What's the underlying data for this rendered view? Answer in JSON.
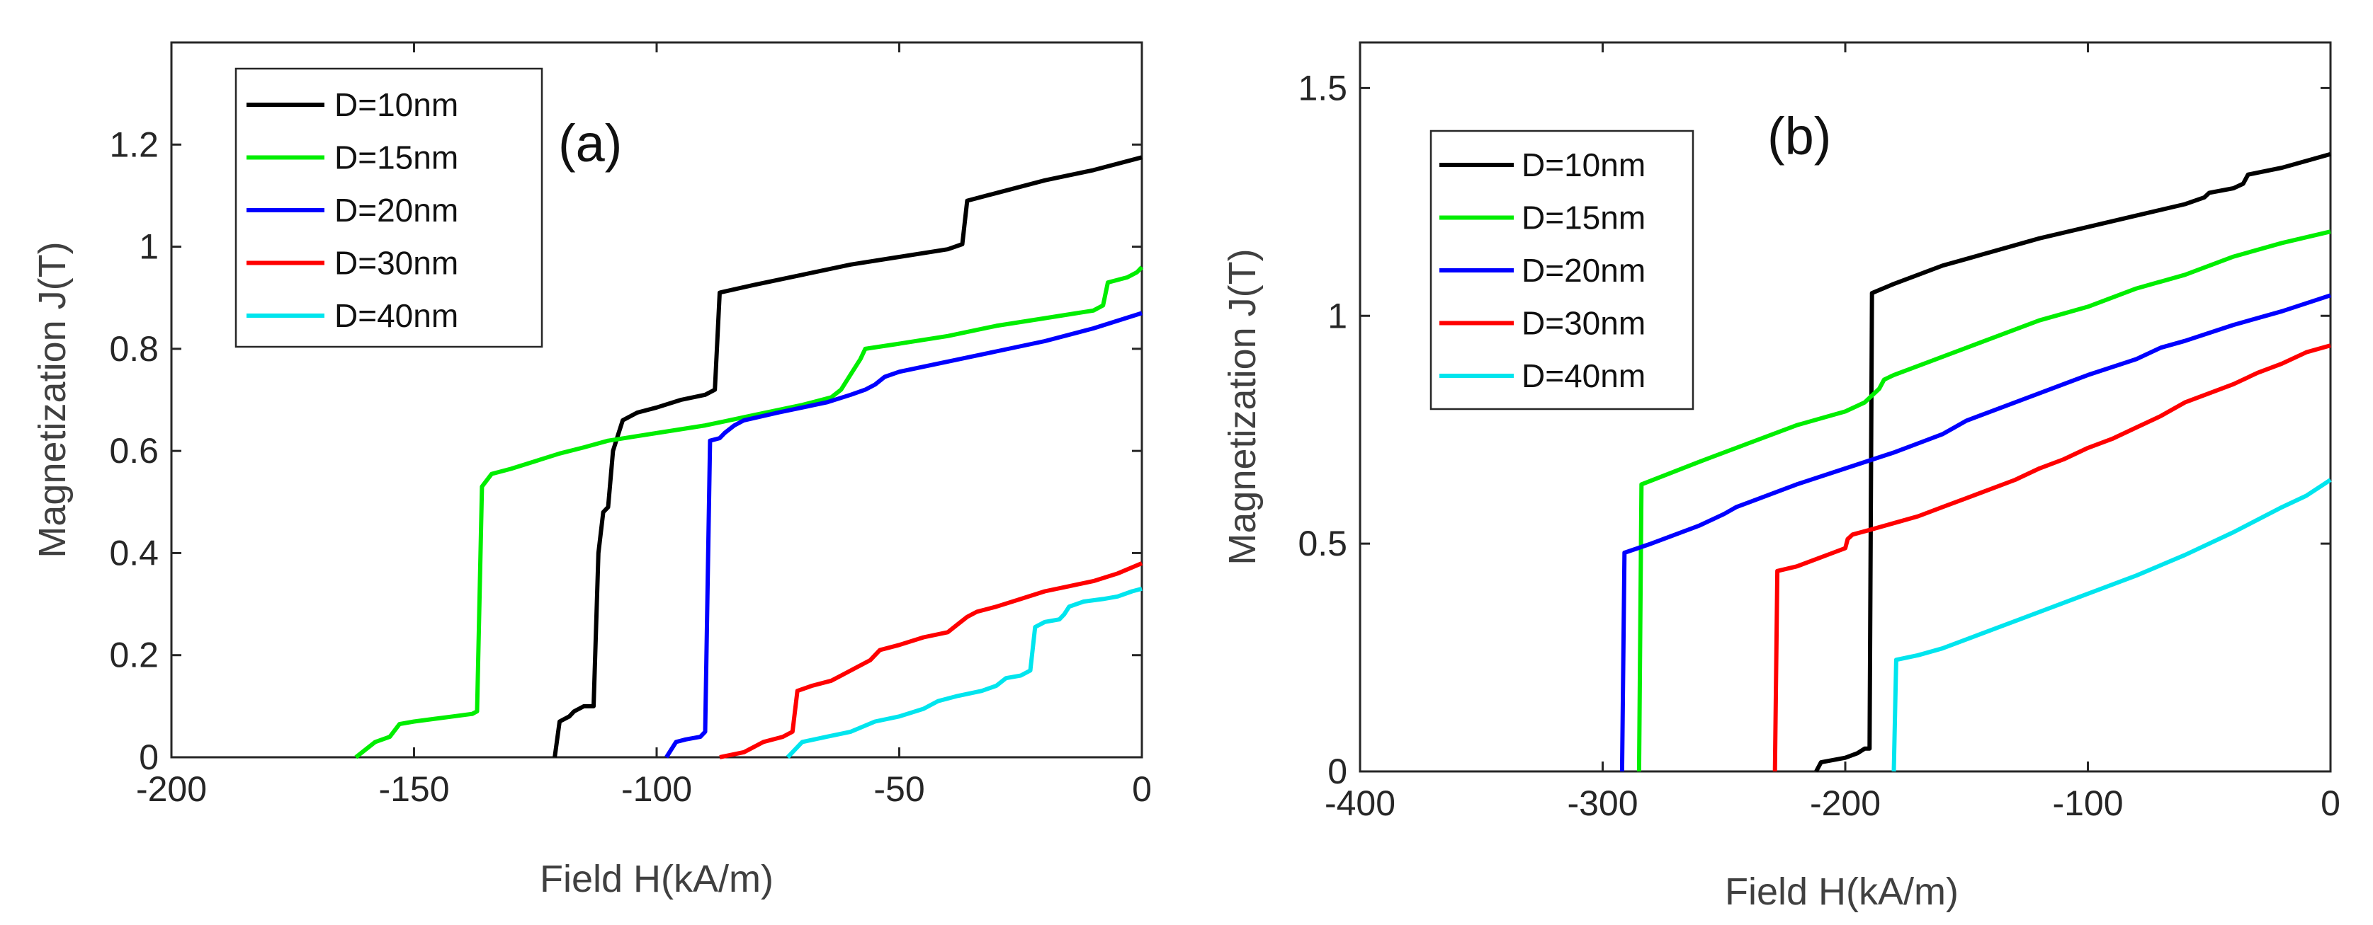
{
  "chart_data": [
    {
      "type": "line",
      "panel_label": "(a)",
      "xlabel": "Field H(kA/m)",
      "ylabel": "Magnetization J(T)",
      "xlim": [
        -200,
        0
      ],
      "ylim": [
        0,
        1.4
      ],
      "xticks": [
        -200,
        -150,
        -100,
        -50,
        0
      ],
      "xtick_labels": [
        "-200",
        "-150",
        "-100",
        "-50",
        "0"
      ],
      "yticks": [
        0,
        0.2,
        0.4,
        0.6,
        0.8,
        1,
        1.2
      ],
      "ytick_labels": [
        "0",
        "0.2",
        "0.4",
        "0.6",
        "0.8",
        "1",
        "1.2"
      ],
      "legend_position": "top-left",
      "series": [
        {
          "name": "D=10nm",
          "color": "#000000",
          "points": [
            [
              -121,
              0
            ],
            [
              -120,
              0.07
            ],
            [
              -118,
              0.08
            ],
            [
              -117,
              0.09
            ],
            [
              -115,
              0.1
            ],
            [
              -113,
              0.1
            ],
            [
              -112,
              0.4
            ],
            [
              -111,
              0.48
            ],
            [
              -110,
              0.49
            ],
            [
              -109,
              0.6
            ],
            [
              -108,
              0.63
            ],
            [
              -107,
              0.66
            ],
            [
              -104,
              0.675
            ],
            [
              -100,
              0.685
            ],
            [
              -95,
              0.7
            ],
            [
              -90,
              0.71
            ],
            [
              -88,
              0.72
            ],
            [
              -87,
              0.91
            ],
            [
              -80,
              0.925
            ],
            [
              -70,
              0.945
            ],
            [
              -60,
              0.965
            ],
            [
              -50,
              0.98
            ],
            [
              -40,
              0.995
            ],
            [
              -37,
              1.005
            ],
            [
              -36,
              1.09
            ],
            [
              -30,
              1.105
            ],
            [
              -20,
              1.13
            ],
            [
              -10,
              1.15
            ],
            [
              0,
              1.175
            ]
          ]
        },
        {
          "name": "D=15nm",
          "color": "#00ee00",
          "points": [
            [
              -162,
              0
            ],
            [
              -158,
              0.03
            ],
            [
              -155,
              0.04
            ],
            [
              -153,
              0.065
            ],
            [
              -150,
              0.07
            ],
            [
              -146,
              0.075
            ],
            [
              -142,
              0.08
            ],
            [
              -138,
              0.085
            ],
            [
              -137,
              0.09
            ],
            [
              -136,
              0.53
            ],
            [
              -134,
              0.555
            ],
            [
              -130,
              0.565
            ],
            [
              -125,
              0.58
            ],
            [
              -120,
              0.595
            ],
            [
              -115,
              0.607
            ],
            [
              -110,
              0.62
            ],
            [
              -100,
              0.635
            ],
            [
              -90,
              0.65
            ],
            [
              -80,
              0.67
            ],
            [
              -70,
              0.69
            ],
            [
              -64,
              0.705
            ],
            [
              -62,
              0.72
            ],
            [
              -60,
              0.75
            ],
            [
              -58,
              0.78
            ],
            [
              -57,
              0.8
            ],
            [
              -50,
              0.81
            ],
            [
              -40,
              0.825
            ],
            [
              -35,
              0.835
            ],
            [
              -30,
              0.845
            ],
            [
              -20,
              0.86
            ],
            [
              -10,
              0.875
            ],
            [
              -8,
              0.885
            ],
            [
              -7,
              0.93
            ],
            [
              -3,
              0.94
            ],
            [
              -1,
              0.95
            ],
            [
              0,
              0.96
            ]
          ]
        },
        {
          "name": "D=20nm",
          "color": "#0000ff",
          "points": [
            [
              -98,
              0
            ],
            [
              -96,
              0.03
            ],
            [
              -94,
              0.035
            ],
            [
              -91,
              0.04
            ],
            [
              -90,
              0.05
            ],
            [
              -89,
              0.62
            ],
            [
              -87,
              0.625
            ],
            [
              -86,
              0.635
            ],
            [
              -84,
              0.65
            ],
            [
              -82,
              0.66
            ],
            [
              -75,
              0.675
            ],
            [
              -70,
              0.685
            ],
            [
              -65,
              0.695
            ],
            [
              -60,
              0.71
            ],
            [
              -57,
              0.72
            ],
            [
              -55,
              0.73
            ],
            [
              -53,
              0.745
            ],
            [
              -50,
              0.755
            ],
            [
              -40,
              0.775
            ],
            [
              -30,
              0.795
            ],
            [
              -20,
              0.815
            ],
            [
              -10,
              0.84
            ],
            [
              0,
              0.87
            ]
          ]
        },
        {
          "name": "D=30nm",
          "color": "#ff0000",
          "points": [
            [
              -87,
              0
            ],
            [
              -82,
              0.01
            ],
            [
              -78,
              0.03
            ],
            [
              -74,
              0.04
            ],
            [
              -72,
              0.05
            ],
            [
              -71,
              0.13
            ],
            [
              -68,
              0.14
            ],
            [
              -64,
              0.15
            ],
            [
              -62,
              0.16
            ],
            [
              -60,
              0.17
            ],
            [
              -58,
              0.18
            ],
            [
              -56,
              0.19
            ],
            [
              -54,
              0.21
            ],
            [
              -50,
              0.22
            ],
            [
              -45,
              0.235
            ],
            [
              -40,
              0.245
            ],
            [
              -38,
              0.26
            ],
            [
              -36,
              0.275
            ],
            [
              -34,
              0.285
            ],
            [
              -30,
              0.295
            ],
            [
              -25,
              0.31
            ],
            [
              -20,
              0.325
            ],
            [
              -15,
              0.335
            ],
            [
              -10,
              0.345
            ],
            [
              -5,
              0.36
            ],
            [
              0,
              0.38
            ]
          ]
        },
        {
          "name": "D=40nm",
          "color": "#00e5ee",
          "points": [
            [
              -73,
              0
            ],
            [
              -70,
              0.03
            ],
            [
              -65,
              0.04
            ],
            [
              -60,
              0.05
            ],
            [
              -55,
              0.07
            ],
            [
              -50,
              0.08
            ],
            [
              -45,
              0.095
            ],
            [
              -42,
              0.11
            ],
            [
              -38,
              0.12
            ],
            [
              -33,
              0.13
            ],
            [
              -30,
              0.14
            ],
            [
              -28,
              0.155
            ],
            [
              -25,
              0.16
            ],
            [
              -23,
              0.17
            ],
            [
              -22,
              0.255
            ],
            [
              -20,
              0.265
            ],
            [
              -17,
              0.27
            ],
            [
              -16,
              0.28
            ],
            [
              -15,
              0.295
            ],
            [
              -12,
              0.305
            ],
            [
              -8,
              0.31
            ],
            [
              -5,
              0.315
            ],
            [
              -2,
              0.325
            ],
            [
              0,
              0.33
            ]
          ]
        }
      ]
    },
    {
      "type": "line",
      "panel_label": "(b)",
      "xlabel": "Field H(kA/m)",
      "ylabel": "Magnetization J(T)",
      "xlim": [
        -400,
        0
      ],
      "ylim": [
        0,
        1.6
      ],
      "xticks": [
        -400,
        -300,
        -200,
        -100,
        0
      ],
      "xtick_labels": [
        "-400",
        "-300",
        "-200",
        "-100",
        "0"
      ],
      "yticks": [
        0,
        0.5,
        1,
        1.5
      ],
      "ytick_labels": [
        "0",
        "0.5",
        "1",
        "1.5"
      ],
      "legend_position": "top-left",
      "series": [
        {
          "name": "D=10nm",
          "color": "#000000",
          "points": [
            [
              -212,
              0
            ],
            [
              -210,
              0.02
            ],
            [
              -200,
              0.03
            ],
            [
              -195,
              0.04
            ],
            [
              -192,
              0.05
            ],
            [
              -190,
              0.05
            ],
            [
              -189,
              1.05
            ],
            [
              -180,
              1.07
            ],
            [
              -170,
              1.09
            ],
            [
              -160,
              1.11
            ],
            [
              -150,
              1.125
            ],
            [
              -140,
              1.14
            ],
            [
              -120,
              1.17
            ],
            [
              -100,
              1.195
            ],
            [
              -80,
              1.22
            ],
            [
              -60,
              1.245
            ],
            [
              -52,
              1.26
            ],
            [
              -50,
              1.27
            ],
            [
              -40,
              1.28
            ],
            [
              -36,
              1.29
            ],
            [
              -34,
              1.31
            ],
            [
              -20,
              1.325
            ],
            [
              -10,
              1.34
            ],
            [
              0,
              1.355
            ]
          ]
        },
        {
          "name": "D=15nm",
          "color": "#00ee00",
          "points": [
            [
              -285,
              0
            ],
            [
              -284,
              0.63
            ],
            [
              -260,
              0.68
            ],
            [
              -240,
              0.72
            ],
            [
              -220,
              0.76
            ],
            [
              -200,
              0.79
            ],
            [
              -192,
              0.81
            ],
            [
              -190,
              0.82
            ],
            [
              -186,
              0.84
            ],
            [
              -184,
              0.86
            ],
            [
              -180,
              0.87
            ],
            [
              -170,
              0.89
            ],
            [
              -160,
              0.91
            ],
            [
              -150,
              0.93
            ],
            [
              -140,
              0.95
            ],
            [
              -120,
              0.99
            ],
            [
              -100,
              1.02
            ],
            [
              -80,
              1.06
            ],
            [
              -60,
              1.09
            ],
            [
              -50,
              1.11
            ],
            [
              -40,
              1.13
            ],
            [
              -20,
              1.16
            ],
            [
              0,
              1.185
            ]
          ]
        },
        {
          "name": "D=20nm",
          "color": "#0000ff",
          "points": [
            [
              -292,
              0
            ],
            [
              -291,
              0.48
            ],
            [
              -280,
              0.5
            ],
            [
              -260,
              0.54
            ],
            [
              -250,
              0.565
            ],
            [
              -245,
              0.58
            ],
            [
              -240,
              0.59
            ],
            [
              -220,
              0.63
            ],
            [
              -200,
              0.665
            ],
            [
              -180,
              0.7
            ],
            [
              -170,
              0.72
            ],
            [
              -160,
              0.74
            ],
            [
              -155,
              0.755
            ],
            [
              -150,
              0.77
            ],
            [
              -140,
              0.79
            ],
            [
              -120,
              0.83
            ],
            [
              -100,
              0.87
            ],
            [
              -80,
              0.905
            ],
            [
              -70,
              0.93
            ],
            [
              -60,
              0.945
            ],
            [
              -40,
              0.98
            ],
            [
              -20,
              1.01
            ],
            [
              0,
              1.045
            ]
          ]
        },
        {
          "name": "D=30nm",
          "color": "#ff0000",
          "points": [
            [
              -229,
              0
            ],
            [
              -228,
              0.44
            ],
            [
              -220,
              0.45
            ],
            [
              -210,
              0.47
            ],
            [
              -205,
              0.48
            ],
            [
              -200,
              0.49
            ],
            [
              -199,
              0.51
            ],
            [
              -197,
              0.52
            ],
            [
              -190,
              0.53
            ],
            [
              -180,
              0.545
            ],
            [
              -170,
              0.56
            ],
            [
              -160,
              0.58
            ],
            [
              -150,
              0.6
            ],
            [
              -140,
              0.62
            ],
            [
              -130,
              0.64
            ],
            [
              -120,
              0.665
            ],
            [
              -110,
              0.685
            ],
            [
              -100,
              0.71
            ],
            [
              -90,
              0.73
            ],
            [
              -80,
              0.755
            ],
            [
              -70,
              0.78
            ],
            [
              -60,
              0.81
            ],
            [
              -50,
              0.83
            ],
            [
              -40,
              0.85
            ],
            [
              -30,
              0.875
            ],
            [
              -20,
              0.895
            ],
            [
              -10,
              0.92
            ],
            [
              0,
              0.935
            ]
          ]
        },
        {
          "name": "D=40nm",
          "color": "#00e5ee",
          "points": [
            [
              -180,
              0
            ],
            [
              -179,
              0.245
            ],
            [
              -170,
              0.255
            ],
            [
              -160,
              0.27
            ],
            [
              -150,
              0.29
            ],
            [
              -140,
              0.31
            ],
            [
              -130,
              0.33
            ],
            [
              -120,
              0.35
            ],
            [
              -100,
              0.39
            ],
            [
              -80,
              0.43
            ],
            [
              -60,
              0.475
            ],
            [
              -40,
              0.525
            ],
            [
              -20,
              0.58
            ],
            [
              -10,
              0.605
            ],
            [
              0,
              0.64
            ]
          ]
        }
      ]
    }
  ]
}
